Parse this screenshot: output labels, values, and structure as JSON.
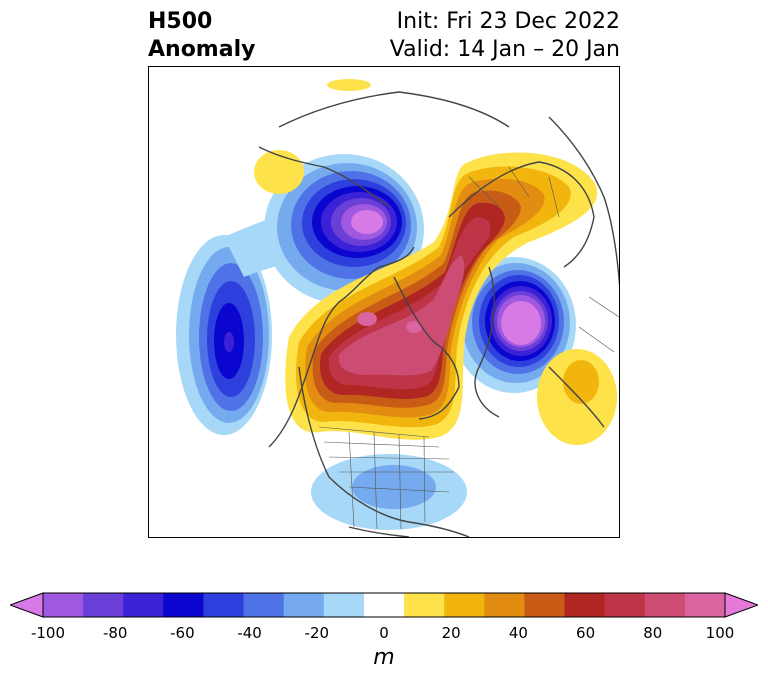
{
  "title": {
    "left_line1": "H500",
    "left_line2": "Anomaly",
    "init": "Init: Fri 23 Dec 2022",
    "valid": "Valid: 14 Jan – 20 Jan"
  },
  "colorbar": {
    "units": "m",
    "ticks": [
      "-100",
      "-80",
      "-60",
      "-40",
      "-20",
      "0",
      "20",
      "40",
      "60",
      "80",
      "100"
    ],
    "colors": [
      "#d77ae6",
      "#9f58e0",
      "#6a3fd8",
      "#3c22d6",
      "#0a06cf",
      "#2d40dd",
      "#4f73e6",
      "#76aaee",
      "#a8d8f8",
      "#ffffff",
      "#fde24a",
      "#f2b50e",
      "#e28d12",
      "#c85c16",
      "#b02623",
      "#be3548",
      "#cc4c74",
      "#d964a0",
      "#e67ad8"
    ]
  },
  "map": {
    "description_icons": [
      "polar-stereographic-projection",
      "continent-outlines",
      "country-borders",
      "us-state-borders"
    ]
  },
  "colors": {
    "frame": "#000000",
    "coastline": "#444444",
    "border": "#555555"
  }
}
